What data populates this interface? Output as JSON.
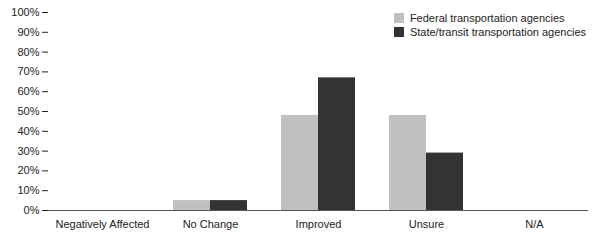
{
  "chart_data": {
    "type": "bar",
    "categories": [
      "Negatively Affected",
      "No Change",
      "Improved",
      "Unsure",
      "N/A"
    ],
    "series": [
      {
        "name": "Federal transportation agencies",
        "color": "#c0c0c0",
        "values": [
          0,
          5,
          48,
          48,
          0
        ]
      },
      {
        "name": "State/transit transportation agencies",
        "color": "#333333",
        "values": [
          0,
          5,
          67,
          29,
          0
        ]
      }
    ],
    "ylim": [
      0,
      100
    ],
    "yticks": [
      {
        "value": 0,
        "label": "0%"
      },
      {
        "value": 10,
        "label": "10%"
      },
      {
        "value": 20,
        "label": "20%"
      },
      {
        "value": 30,
        "label": "30%"
      },
      {
        "value": 40,
        "label": "40%"
      },
      {
        "value": 50,
        "label": "50%"
      },
      {
        "value": 60,
        "label": "60%"
      },
      {
        "value": 70,
        "label": "70%"
      },
      {
        "value": 80,
        "label": "80%"
      },
      {
        "value": 90,
        "label": "90%"
      },
      {
        "value": 100,
        "label": "100%"
      }
    ],
    "grid": false,
    "legend": "top-right"
  }
}
